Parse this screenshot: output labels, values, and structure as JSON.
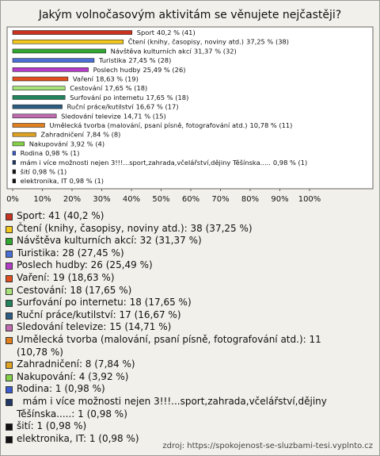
{
  "chart_data": {
    "type": "bar",
    "orientation": "horizontal",
    "title": "Jakým volnočasovým aktivitám se věnujete nejčastěji?",
    "categories": [
      "Sport",
      "Čtení (knihy, časopisy, noviny atd.)",
      "Návštěva kulturních akcí",
      "Turistika",
      "Poslech hudby",
      "Vaření",
      "Cestování",
      "Surfování po internetu",
      "Ruční práce/kutilství",
      "Sledování televize",
      "Umělecká tvorba (malování, psaní písně, fotografování atd.)",
      "Zahradničení",
      "Nakupování",
      "Rodina",
      "  mám i více možnosti nejen 3!!!...sport,zahrada,včelářství,dějiny Těšínska.....",
      "šití",
      "elektronika, IT"
    ],
    "values": [
      40.2,
      37.25,
      31.37,
      27.45,
      25.49,
      18.63,
      17.65,
      17.65,
      16.67,
      14.71,
      10.78,
      7.84,
      3.92,
      0.98,
      0.98,
      0.98,
      0.98
    ],
    "value_labels": [
      "40,2 % (41)",
      "37,25 % (38)",
      "31,37 % (32)",
      "27,45 % (28)",
      "25,49 % (26)",
      "18,63 % (19)",
      "17,65 % (18)",
      "17,65 % (18)",
      "16,67 % (17)",
      "14,71 % (15)",
      "10,78 % (11)",
      "7,84 % (8)",
      "3,92 % (4)",
      "0,98 % (1)",
      "0,98 % (1)",
      "0,98 % (1)",
      "0,98 % (1)"
    ],
    "colors": [
      "#c8321e",
      "#f2c81e",
      "#30a830",
      "#4a70d8",
      "#b43cc8",
      "#e0501e",
      "#a8e27a",
      "#22845c",
      "#2c5c82",
      "#c06cb0",
      "#e0801e",
      "#e0a424",
      "#84d048",
      "#3c5cd0",
      "#223866",
      "#111111",
      "#111111"
    ],
    "legend_labels": [
      "Sport: 41 (40,2 %)",
      "Čtení (knihy, časopisy, noviny atd.): 38 (37,25 %)",
      "Návštěva kulturních akcí: 32 (31,37 %)",
      "Turistika: 28 (27,45 %)",
      "Poslech hudby: 26 (25,49 %)",
      "Vaření: 19 (18,63 %)",
      "Cestování: 18 (17,65 %)",
      "Surfování po internetu: 18 (17,65 %)",
      "Ruční práce/kutilství: 17 (16,67 %)",
      "Sledování televize: 15 (14,71 %)",
      "Umělecká tvorba (malování, psaní písně, fotografování atd.): 11 (10,78 %)",
      "Zahradničení: 8 (7,84 %)",
      "Nakupování: 4 (3,92 %)",
      "Rodina: 1 (0,98 %)",
      "  mám i více možnosti nejen 3!!!...sport,zahrada,včelářství,dějiny Těšínska.....: 1 (0,98 %)",
      "šití: 1 (0,98 %)",
      "elektronika, IT: 1 (0,98 %)"
    ],
    "xlim": [
      0,
      100
    ],
    "xticks": [
      {
        "value": 0,
        "label": "0%"
      },
      {
        "value": 10,
        "label": "10%"
      },
      {
        "value": 20,
        "label": "20%"
      },
      {
        "value": 30,
        "label": "30%"
      },
      {
        "value": 40,
        "label": "40%"
      },
      {
        "value": 50,
        "label": "50%"
      },
      {
        "value": 60,
        "label": "60%"
      },
      {
        "value": 70,
        "label": "70%"
      },
      {
        "value": 80,
        "label": "80%"
      },
      {
        "value": 90,
        "label": "90%"
      },
      {
        "value": 100,
        "label": "100%"
      }
    ],
    "source": "zdroj: https://spokojenost-se-sluzbami-tesi.vyplnto.cz"
  }
}
